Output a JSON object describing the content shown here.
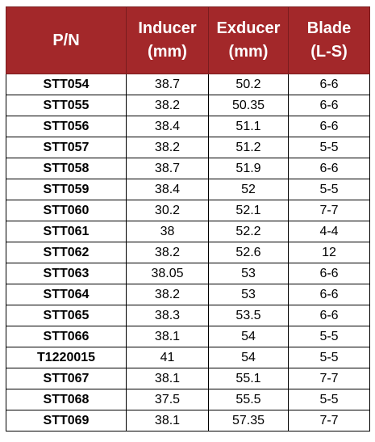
{
  "table": {
    "header": [
      "P/N",
      "Inducer\n(mm)",
      "Exducer\n(mm)",
      "Blade\n(L-S)"
    ],
    "rows": [
      [
        "STT054",
        "38.7",
        "50.2",
        "6-6"
      ],
      [
        "STT055",
        "38.2",
        "50.35",
        "6-6"
      ],
      [
        "STT056",
        "38.4",
        "51.1",
        "6-6"
      ],
      [
        "STT057",
        "38.2",
        "51.2",
        "5-5"
      ],
      [
        "STT058",
        "38.7",
        "51.9",
        "6-6"
      ],
      [
        "STT059",
        "38.4",
        "52",
        "5-5"
      ],
      [
        "STT060",
        "30.2",
        "52.1",
        "7-7"
      ],
      [
        "STT061",
        "38",
        "52.2",
        "4-4"
      ],
      [
        "STT062",
        "38.2",
        "52.6",
        "12"
      ],
      [
        "STT063",
        "38.05",
        "53",
        "6-6"
      ],
      [
        "STT064",
        "38.2",
        "53",
        "6-6"
      ],
      [
        "STT065",
        "38.3",
        "53.5",
        "6-6"
      ],
      [
        "STT066",
        "38.1",
        "54",
        "5-5"
      ],
      [
        "T1220015",
        "41",
        "54",
        "5-5"
      ],
      [
        "STT067",
        "38.1",
        "55.1",
        "7-7"
      ],
      [
        "STT068",
        "37.5",
        "55.5",
        "5-5"
      ],
      [
        "STT069",
        "38.1",
        "57.35",
        "7-7"
      ]
    ]
  }
}
